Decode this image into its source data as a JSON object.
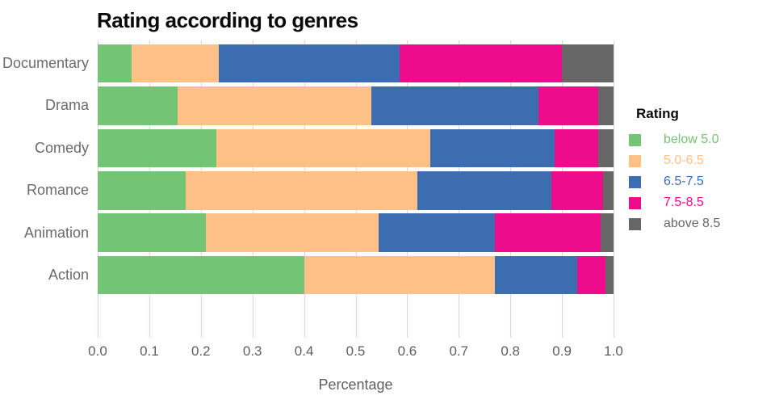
{
  "figure": {
    "background": "#ffffff"
  },
  "chart_data": {
    "type": "bar",
    "orientation": "horizontal",
    "stacked": true,
    "title": "Rating according to genres",
    "xlabel": "Percentage",
    "ylabel": "",
    "xlim": [
      0.0,
      1.0
    ],
    "xticks": [
      "0.0",
      "0.1",
      "0.2",
      "0.3",
      "0.4",
      "0.5",
      "0.6",
      "0.7",
      "0.8",
      "0.9",
      "1.0"
    ],
    "grid": true,
    "grid_color": "#f3cdcd",
    "legend_title": "Rating",
    "legend_position": "right",
    "categories": [
      "Documentary",
      "Drama",
      "Comedy",
      "Romance",
      "Animation",
      "Action"
    ],
    "series": [
      {
        "name": "below 5.0",
        "color": "#74c476",
        "values": [
          0.065,
          0.155,
          0.23,
          0.17,
          0.21,
          0.4
        ]
      },
      {
        "name": "5.0-6.5",
        "color": "#fdc086",
        "values": [
          0.17,
          0.375,
          0.415,
          0.45,
          0.335,
          0.37
        ]
      },
      {
        "name": "6.5-7.5",
        "color": "#3b6db0",
        "values": [
          0.35,
          0.325,
          0.24,
          0.26,
          0.225,
          0.16
        ]
      },
      {
        "name": "7.5-8.5",
        "color": "#ec0c8c",
        "values": [
          0.315,
          0.115,
          0.085,
          0.1,
          0.205,
          0.055
        ]
      },
      {
        "name": "above 8.5",
        "color": "#666666",
        "values": [
          0.1,
          0.03,
          0.03,
          0.02,
          0.025,
          0.015
        ]
      }
    ],
    "text_colors": {
      "title": "#0a0a0a",
      "axis_labels": "#5f5f5f",
      "category_labels": "#6b6b6b"
    }
  }
}
